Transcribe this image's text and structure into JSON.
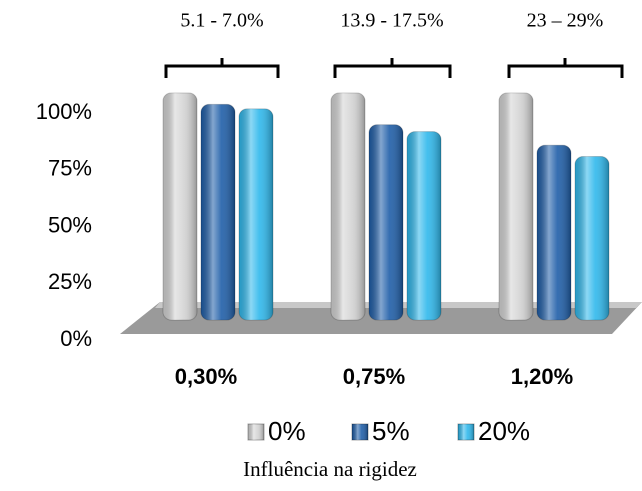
{
  "chart_data": {
    "type": "bar",
    "title": "Influência na rigidez",
    "categories": [
      "0,30%",
      "0,75%",
      "1,20%"
    ],
    "series": [
      {
        "name": "0%",
        "color": "#d4d4d4",
        "values": [
          100,
          100,
          100
        ]
      },
      {
        "name": "5%",
        "color": "#1f5ea8",
        "values": [
          95,
          86,
          77
        ]
      },
      {
        "name": "20%",
        "color": "#2fb8ec",
        "values": [
          93,
          83,
          72
        ]
      }
    ],
    "annotations": [
      "5.1 - 7.0%",
      "13.9 - 17.5%",
      "23 – 29%"
    ],
    "ylim": [
      0,
      100
    ],
    "yticks": [
      {
        "value": 0,
        "label": "0%"
      },
      {
        "value": 25,
        "label": "25%"
      },
      {
        "value": 50,
        "label": "50%"
      },
      {
        "value": 75,
        "label": "75%"
      },
      {
        "value": 100,
        "label": "100%"
      }
    ],
    "grid": false,
    "legend": "bottom"
  }
}
